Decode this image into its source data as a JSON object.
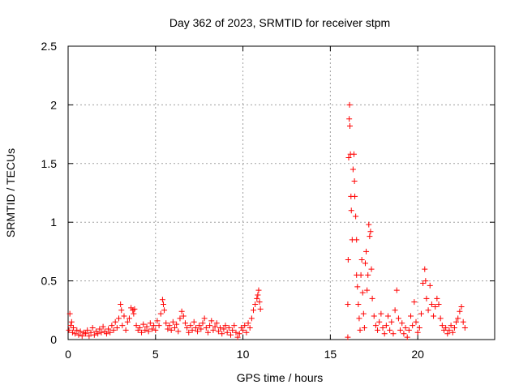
{
  "chart_data": {
    "type": "scatter",
    "title": "Day 362 of 2023, SRMTID for receiver stpm",
    "xlabel": "GPS time / hours",
    "ylabel": "SRMTID / TECUs",
    "xlim": [
      0,
      24.4
    ],
    "ylim": [
      0,
      2.5
    ],
    "xticks": [
      0,
      5,
      10,
      15,
      20
    ],
    "xtick_labels": [
      "0",
      "5",
      "10",
      "15",
      "20"
    ],
    "yticks": [
      0,
      0.5,
      1,
      1.5,
      2,
      2.5
    ],
    "ytick_labels": [
      "0",
      "0.5",
      "1",
      "1.5",
      "2",
      "2.5"
    ],
    "grid": true,
    "marker": "+",
    "color": "#ff0000",
    "series": [
      {
        "name": "SRMTID",
        "points": [
          [
            0.05,
            0.08
          ],
          [
            0.1,
            0.22
          ],
          [
            0.15,
            0.12
          ],
          [
            0.2,
            0.15
          ],
          [
            0.25,
            0.06
          ],
          [
            0.3,
            0.1
          ],
          [
            0.4,
            0.05
          ],
          [
            0.5,
            0.08
          ],
          [
            0.6,
            0.04
          ],
          [
            0.7,
            0.07
          ],
          [
            0.8,
            0.03
          ],
          [
            0.9,
            0.06
          ],
          [
            1.0,
            0.05
          ],
          [
            1.1,
            0.08
          ],
          [
            1.2,
            0.03
          ],
          [
            1.3,
            0.06
          ],
          [
            1.4,
            0.1
          ],
          [
            1.5,
            0.04
          ],
          [
            1.6,
            0.07
          ],
          [
            1.7,
            0.05
          ],
          [
            1.8,
            0.09
          ],
          [
            1.9,
            0.06
          ],
          [
            2.0,
            0.11
          ],
          [
            2.1,
            0.07
          ],
          [
            2.2,
            0.05
          ],
          [
            2.3,
            0.09
          ],
          [
            2.4,
            0.06
          ],
          [
            2.5,
            0.12
          ],
          [
            2.6,
            0.08
          ],
          [
            2.7,
            0.15
          ],
          [
            2.8,
            0.1
          ],
          [
            2.9,
            0.18
          ],
          [
            3.0,
            0.3
          ],
          [
            3.05,
            0.25
          ],
          [
            3.1,
            0.12
          ],
          [
            3.2,
            0.2
          ],
          [
            3.3,
            0.08
          ],
          [
            3.4,
            0.15
          ],
          [
            3.5,
            0.18
          ],
          [
            3.6,
            0.27
          ],
          [
            3.7,
            0.25
          ],
          [
            3.75,
            0.22
          ],
          [
            3.8,
            0.26
          ],
          [
            3.9,
            0.12
          ],
          [
            4.0,
            0.08
          ],
          [
            4.1,
            0.1
          ],
          [
            4.2,
            0.06
          ],
          [
            4.3,
            0.13
          ],
          [
            4.4,
            0.08
          ],
          [
            4.5,
            0.11
          ],
          [
            4.6,
            0.07
          ],
          [
            4.7,
            0.14
          ],
          [
            4.8,
            0.09
          ],
          [
            4.9,
            0.12
          ],
          [
            5.0,
            0.08
          ],
          [
            5.1,
            0.16
          ],
          [
            5.2,
            0.12
          ],
          [
            5.3,
            0.22
          ],
          [
            5.4,
            0.34
          ],
          [
            5.45,
            0.3
          ],
          [
            5.5,
            0.25
          ],
          [
            5.6,
            0.14
          ],
          [
            5.7,
            0.09
          ],
          [
            5.8,
            0.12
          ],
          [
            5.9,
            0.08
          ],
          [
            6.0,
            0.15
          ],
          [
            6.1,
            0.1
          ],
          [
            6.2,
            0.13
          ],
          [
            6.3,
            0.07
          ],
          [
            6.4,
            0.18
          ],
          [
            6.5,
            0.24
          ],
          [
            6.6,
            0.2
          ],
          [
            6.7,
            0.14
          ],
          [
            6.8,
            0.1
          ],
          [
            6.9,
            0.06
          ],
          [
            7.0,
            0.12
          ],
          [
            7.1,
            0.08
          ],
          [
            7.2,
            0.15
          ],
          [
            7.3,
            0.1
          ],
          [
            7.4,
            0.07
          ],
          [
            7.5,
            0.12
          ],
          [
            7.6,
            0.09
          ],
          [
            7.7,
            0.14
          ],
          [
            7.8,
            0.18
          ],
          [
            7.9,
            0.1
          ],
          [
            8.0,
            0.06
          ],
          [
            8.1,
            0.12
          ],
          [
            8.2,
            0.16
          ],
          [
            8.3,
            0.08
          ],
          [
            8.4,
            0.11
          ],
          [
            8.5,
            0.14
          ],
          [
            8.6,
            0.07
          ],
          [
            8.7,
            0.1
          ],
          [
            8.8,
            0.05
          ],
          [
            8.9,
            0.09
          ],
          [
            9.0,
            0.12
          ],
          [
            9.1,
            0.06
          ],
          [
            9.2,
            0.1
          ],
          [
            9.3,
            0.04
          ],
          [
            9.4,
            0.08
          ],
          [
            9.5,
            0.12
          ],
          [
            9.6,
            0.06
          ],
          [
            9.7,
            0.02
          ],
          [
            9.8,
            0.05
          ],
          [
            9.9,
            0.1
          ],
          [
            10.0,
            0.08
          ],
          [
            10.1,
            0.12
          ],
          [
            10.2,
            0.06
          ],
          [
            10.3,
            0.14
          ],
          [
            10.4,
            0.1
          ],
          [
            10.5,
            0.18
          ],
          [
            10.6,
            0.25
          ],
          [
            10.7,
            0.3
          ],
          [
            10.8,
            0.35
          ],
          [
            10.85,
            0.38
          ],
          [
            10.9,
            0.42
          ],
          [
            10.95,
            0.32
          ],
          [
            11.0,
            0.26
          ],
          [
            16.0,
            0.02
          ],
          [
            16.0,
            0.3
          ],
          [
            16.02,
            0.68
          ],
          [
            16.05,
            1.55
          ],
          [
            16.08,
            1.88
          ],
          [
            16.1,
            2.0
          ],
          [
            16.12,
            1.82
          ],
          [
            16.15,
            1.58
          ],
          [
            16.18,
            1.22
          ],
          [
            16.2,
            1.1
          ],
          [
            16.25,
            0.85
          ],
          [
            16.3,
            1.45
          ],
          [
            16.35,
            1.58
          ],
          [
            16.38,
            1.35
          ],
          [
            16.4,
            1.22
          ],
          [
            16.45,
            1.05
          ],
          [
            16.5,
            0.85
          ],
          [
            16.5,
            0.55
          ],
          [
            16.55,
            0.45
          ],
          [
            16.6,
            0.3
          ],
          [
            16.65,
            0.18
          ],
          [
            16.7,
            0.08
          ],
          [
            16.75,
            0.55
          ],
          [
            16.8,
            0.68
          ],
          [
            16.85,
            0.4
          ],
          [
            16.9,
            0.22
          ],
          [
            16.95,
            0.1
          ],
          [
            17.0,
            0.65
          ],
          [
            17.05,
            0.75
          ],
          [
            17.1,
            0.42
          ],
          [
            17.15,
            0.55
          ],
          [
            17.2,
            0.98
          ],
          [
            17.25,
            0.88
          ],
          [
            17.3,
            0.92
          ],
          [
            17.35,
            0.6
          ],
          [
            17.4,
            0.35
          ],
          [
            17.5,
            0.2
          ],
          [
            17.6,
            0.12
          ],
          [
            17.7,
            0.08
          ],
          [
            17.8,
            0.15
          ],
          [
            17.9,
            0.22
          ],
          [
            18.0,
            0.1
          ],
          [
            18.1,
            0.05
          ],
          [
            18.2,
            0.12
          ],
          [
            18.3,
            0.2
          ],
          [
            18.4,
            0.08
          ],
          [
            18.5,
            0.15
          ],
          [
            18.6,
            0.05
          ],
          [
            18.7,
            0.25
          ],
          [
            18.8,
            0.42
          ],
          [
            18.9,
            0.18
          ],
          [
            19.0,
            0.08
          ],
          [
            19.1,
            0.14
          ],
          [
            19.2,
            0.05
          ],
          [
            19.3,
            0.1
          ],
          [
            19.4,
            0.02
          ],
          [
            19.5,
            0.08
          ],
          [
            19.6,
            0.2
          ],
          [
            19.7,
            0.12
          ],
          [
            19.8,
            0.32
          ],
          [
            19.9,
            0.15
          ],
          [
            20.0,
            0.06
          ],
          [
            20.1,
            0.1
          ],
          [
            20.2,
            0.22
          ],
          [
            20.3,
            0.48
          ],
          [
            20.4,
            0.6
          ],
          [
            20.45,
            0.5
          ],
          [
            20.5,
            0.35
          ],
          [
            20.6,
            0.25
          ],
          [
            20.7,
            0.46
          ],
          [
            20.8,
            0.3
          ],
          [
            20.9,
            0.2
          ],
          [
            21.0,
            0.28
          ],
          [
            21.1,
            0.35
          ],
          [
            21.2,
            0.3
          ],
          [
            21.3,
            0.18
          ],
          [
            21.4,
            0.12
          ],
          [
            21.5,
            0.08
          ],
          [
            21.6,
            0.1
          ],
          [
            21.7,
            0.05
          ],
          [
            21.8,
            0.08
          ],
          [
            21.9,
            0.12
          ],
          [
            22.0,
            0.06
          ],
          [
            22.1,
            0.1
          ],
          [
            22.2,
            0.15
          ],
          [
            22.3,
            0.18
          ],
          [
            22.4,
            0.24
          ],
          [
            22.5,
            0.28
          ],
          [
            22.6,
            0.15
          ],
          [
            22.7,
            0.1
          ]
        ]
      }
    ]
  }
}
